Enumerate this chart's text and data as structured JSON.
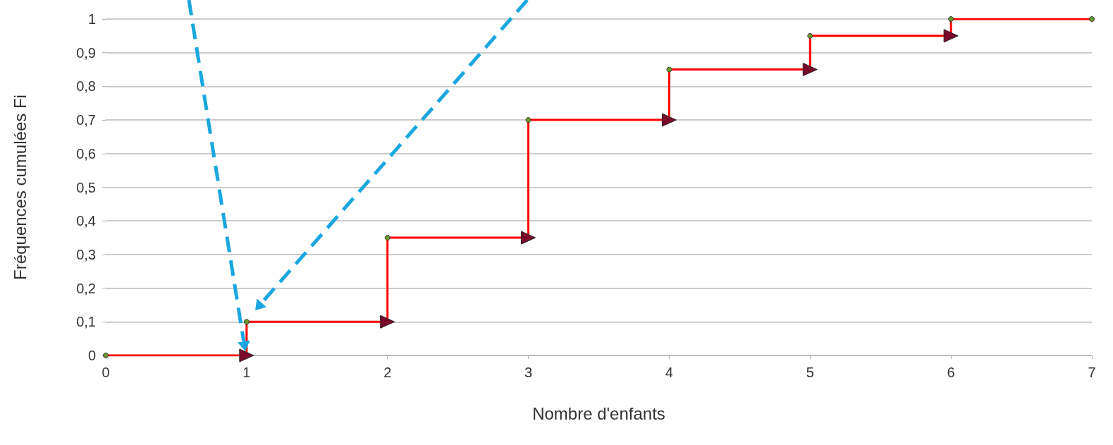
{
  "chart_data": {
    "type": "step",
    "xlabel": "Nombre d'enfants",
    "ylabel": "Fréquences cumulées Fi",
    "x": [
      0,
      1,
      2,
      3,
      4,
      5,
      6,
      7
    ],
    "values": [
      0,
      0.1,
      0.35,
      0.7,
      0.85,
      0.95,
      1,
      1
    ],
    "color": "#ff0000",
    "xlim": [
      0,
      7
    ],
    "xticks": [
      0,
      1,
      2,
      3,
      4,
      5,
      6,
      7
    ],
    "ylim": [
      0,
      1
    ],
    "yticks": [
      0,
      {
        "value": 0.1,
        "label": "0,1"
      },
      {
        "value": 0.2,
        "label": "0,2"
      },
      {
        "value": 0.3,
        "label": "0,3"
      },
      {
        "value": 0.4,
        "label": "0,4"
      },
      {
        "value": 0.5,
        "label": "0,5"
      },
      {
        "value": 0.6,
        "label": "0,6"
      },
      {
        "value": 0.7,
        "label": "0,7"
      },
      {
        "value": 0.8,
        "label": "0,8"
      },
      {
        "value": 0.9,
        "label": "0,9"
      },
      1
    ],
    "grid": "y",
    "marker": "circle",
    "line_style": "solid"
  }
}
